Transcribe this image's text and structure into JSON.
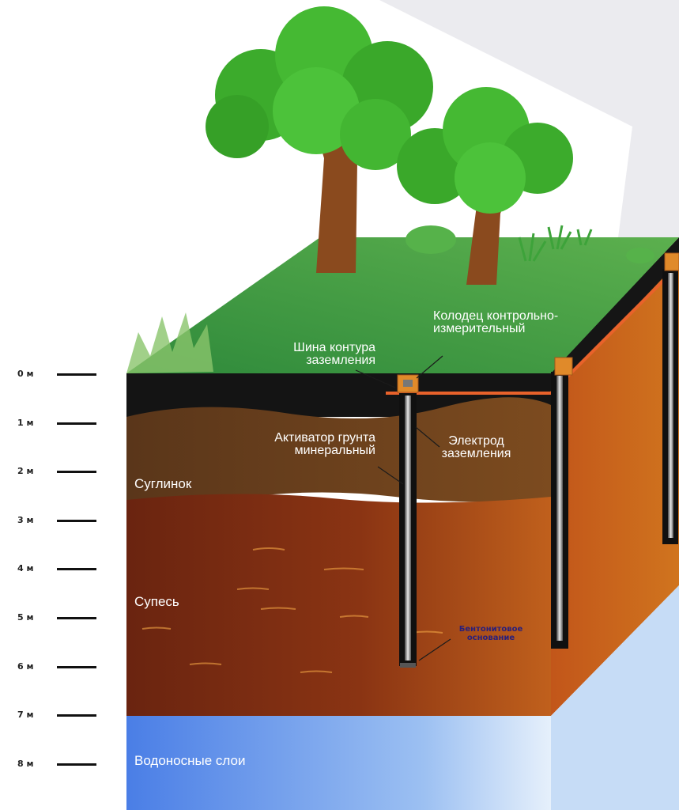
{
  "depth_scale": {
    "marks": [
      "0 м",
      "1 м",
      "2 м",
      "3 м",
      "4 м",
      "5 м",
      "6 м",
      "7 м",
      "8 м"
    ]
  },
  "layers": {
    "loam": "Суглинок",
    "sandy_loam": "Супесь",
    "aquifer": "Водоносные слои"
  },
  "callouts": {
    "bus": "Шина контура заземления",
    "well": "Колодец контрольно-измерительный",
    "activator": "Активатор грунта минеральный",
    "electrode": "Электрод заземления",
    "base": "Бентонитовое основание"
  },
  "colors": {
    "grass": "#3f9a45",
    "topsoil": "#121212",
    "loam": "#6b4220",
    "sandy_loam": "#7a2c12",
    "water": "#4f86e8",
    "bus": "#e8622b",
    "electrode": "#111111"
  }
}
